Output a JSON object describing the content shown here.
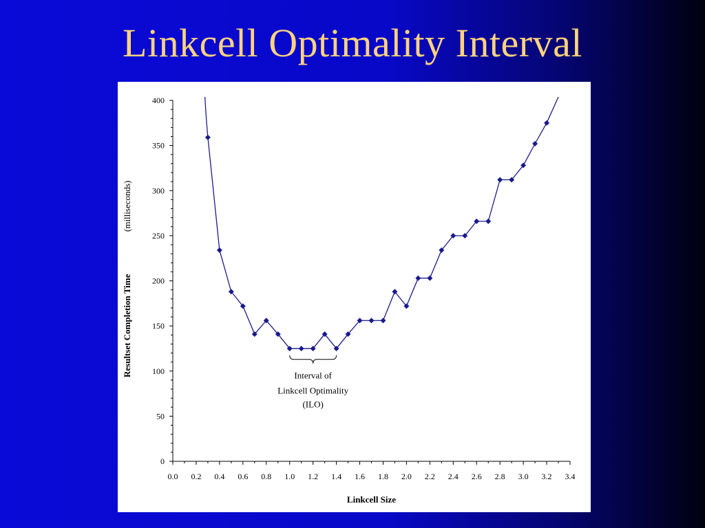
{
  "slide": {
    "title": "Linkcell Optimality Interval"
  },
  "chart_data": {
    "type": "line",
    "title": "",
    "xlabel": "Linkcell Size",
    "ylabel": "Resultset Completion Time",
    "ylabel_unit": "(milliseconds)",
    "xlim": [
      0.0,
      3.4
    ],
    "ylim": [
      0,
      400
    ],
    "xticks": [
      "0.0",
      "0.2",
      "0.4",
      "0.6",
      "0.8",
      "1.0",
      "1.2",
      "1.4",
      "1.6",
      "1.8",
      "2.0",
      "2.2",
      "2.4",
      "2.6",
      "2.8",
      "3.0",
      "3.2",
      "3.4"
    ],
    "yticks": [
      "0",
      "50",
      "100",
      "150",
      "200",
      "250",
      "300",
      "350",
      "400"
    ],
    "grid": false,
    "legend": "none",
    "series": [
      {
        "color": "#1a1a8c",
        "marker": "diamond",
        "x": [
          0.3,
          0.4,
          0.5,
          0.6,
          0.7,
          0.8,
          0.9,
          1.0,
          1.1,
          1.2,
          1.3,
          1.4,
          1.5,
          1.6,
          1.7,
          1.8,
          1.9,
          2.0,
          2.1,
          2.2,
          2.3,
          2.4,
          2.5,
          2.6,
          2.7,
          2.8,
          2.9,
          3.0,
          3.1,
          3.2
        ],
        "y": [
          359,
          234,
          188,
          172,
          141,
          156,
          141,
          125,
          125,
          125,
          141,
          125,
          141,
          156,
          156,
          156,
          188,
          172,
          203,
          203,
          234,
          250,
          250,
          266,
          266,
          312,
          312,
          328,
          352,
          375
        ]
      }
    ],
    "annotations": [
      {
        "text_lines": [
          "Interval of",
          "Linkcell Optimality",
          "(ILO)"
        ],
        "x_range": [
          1.0,
          1.4
        ]
      }
    ]
  }
}
